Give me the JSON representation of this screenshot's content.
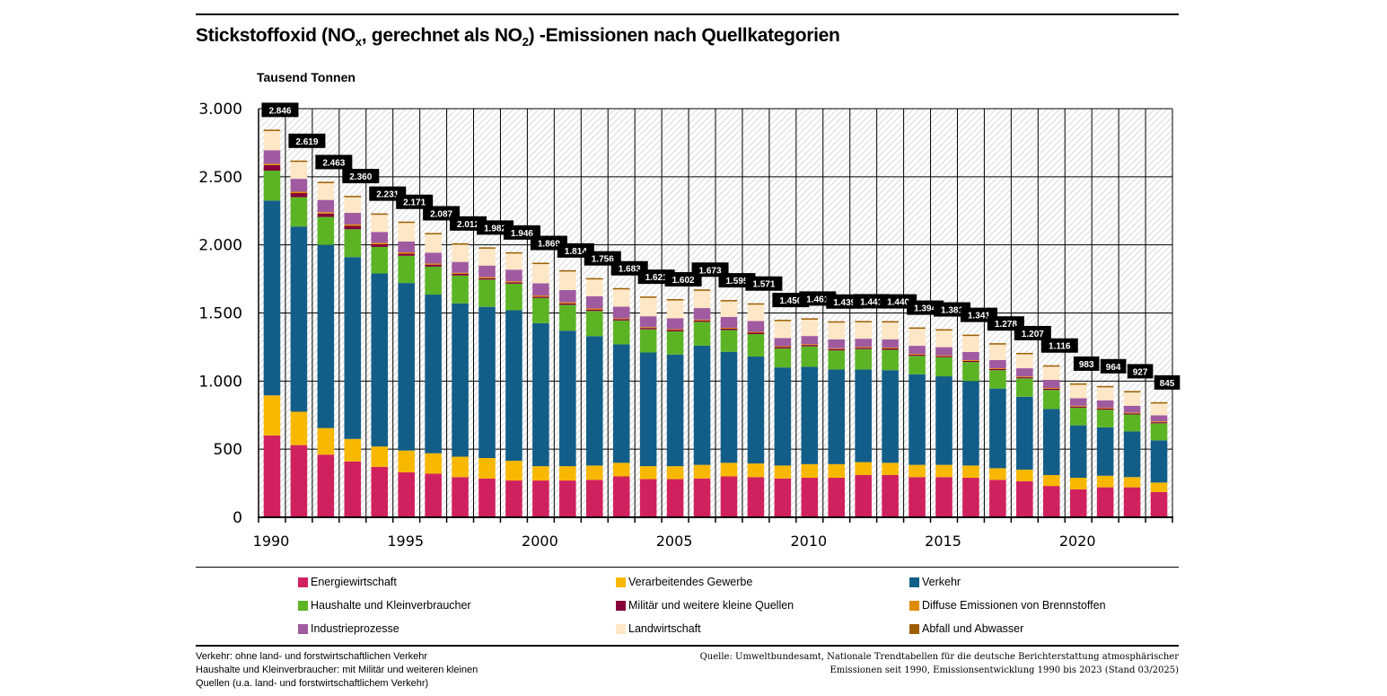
{
  "title_parts": {
    "a": "Stickstoffoxid (NO",
    "sub1": "x",
    "b": ", gerechnet als NO",
    "sub2": "2",
    "c": ") -Emissionen nach Quellkategorien"
  },
  "chart_data": {
    "type": "bar",
    "stacked": true,
    "title": "Stickstoffoxid (NOx, gerechnet als NO2) -Emissionen nach Quellkategorien",
    "ylabel": "Tausend Tonnen",
    "xlabel": "",
    "ylim": [
      0,
      3000
    ],
    "yticks": [
      0,
      500,
      1000,
      1500,
      2000,
      2500,
      3000
    ],
    "ytick_labels": [
      "0",
      "500",
      "1.000",
      "1.500",
      "2.000",
      "2.500",
      "3.000"
    ],
    "grid": true,
    "categories": [
      1990,
      1991,
      1992,
      1993,
      1994,
      1995,
      1996,
      1997,
      1998,
      1999,
      2000,
      2001,
      2002,
      2003,
      2004,
      2005,
      2006,
      2007,
      2008,
      2009,
      2010,
      2011,
      2012,
      2013,
      2014,
      2015,
      2016,
      2017,
      2018,
      2019,
      2020,
      2021,
      2022,
      2023
    ],
    "xtick_labels": {
      "1990": "1990",
      "1995": "1995",
      "2000": "2000",
      "2005": "2005",
      "2010": "2010",
      "2015": "2015",
      "2020": "2020"
    },
    "totals": [
      2846,
      2619,
      2463,
      2360,
      2231,
      2171,
      2087,
      2012,
      1982,
      1946,
      1869,
      1814,
      1756,
      1683,
      1621,
      1602,
      1673,
      1595,
      1571,
      1450,
      1461,
      1439,
      1441,
      1440,
      1394,
      1381,
      1341,
      1278,
      1207,
      1116,
      983,
      964,
      927,
      845
    ],
    "total_labels": [
      "2.846",
      "2.619",
      "2.463",
      "2.360",
      "2.231",
      "2.171",
      "2.087",
      "2.012",
      "1.982",
      "1.946",
      "1.869",
      "1.814",
      "1.756",
      "1.683",
      "1.621",
      "1.602",
      "1.673",
      "1.595",
      "1.571",
      "1.450",
      "1.461",
      "1.439",
      "1.441",
      "1.440",
      "1.394",
      "1.381",
      "1.341",
      "1.278",
      "1.207",
      "1.116",
      "983",
      "964",
      "927",
      "845"
    ],
    "series": [
      {
        "name": "Energiewirtschaft",
        "color": "#d0215f",
        "values": [
          600,
          530,
          460,
          410,
          370,
          330,
          320,
          295,
          285,
          270,
          270,
          270,
          275,
          300,
          280,
          280,
          285,
          300,
          295,
          285,
          290,
          290,
          310,
          310,
          295,
          295,
          290,
          275,
          265,
          230,
          205,
          220,
          220,
          185
        ]
      },
      {
        "name": "Verarbeitendes Gewerbe",
        "color": "#f9b800",
        "values": [
          295,
          245,
          195,
          165,
          150,
          160,
          150,
          150,
          150,
          145,
          105,
          105,
          105,
          100,
          95,
          95,
          100,
          100,
          100,
          95,
          100,
          100,
          95,
          90,
          90,
          90,
          90,
          85,
          85,
          80,
          85,
          85,
          75,
          70
        ]
      },
      {
        "name": "Verkehr",
        "color": "#125e88",
        "values": [
          1430,
          1360,
          1345,
          1335,
          1270,
          1230,
          1165,
          1125,
          1110,
          1105,
          1050,
          995,
          950,
          870,
          835,
          820,
          875,
          815,
          785,
          720,
          715,
          695,
          680,
          680,
          665,
          650,
          620,
          585,
          535,
          485,
          385,
          355,
          335,
          310
        ]
      },
      {
        "name": "Haushalte und Kleinverbraucher",
        "color": "#5cb425",
        "values": [
          220,
          215,
          205,
          205,
          195,
          200,
          205,
          205,
          200,
          195,
          185,
          190,
          185,
          175,
          170,
          170,
          175,
          160,
          165,
          140,
          150,
          140,
          150,
          150,
          135,
          140,
          140,
          135,
          135,
          140,
          130,
          130,
          125,
          125
        ]
      },
      {
        "name": "Militär und weitere kleine Quellen",
        "color": "#86003a",
        "values": [
          40,
          30,
          25,
          25,
          20,
          15,
          15,
          12,
          10,
          10,
          10,
          10,
          10,
          10,
          10,
          10,
          10,
          10,
          10,
          10,
          10,
          10,
          10,
          10,
          8,
          8,
          8,
          8,
          8,
          8,
          8,
          8,
          8,
          8
        ]
      },
      {
        "name": "Diffuse Emissionen von Brennstoffen",
        "color": "#e08c00",
        "values": [
          10,
          10,
          10,
          10,
          10,
          10,
          8,
          8,
          8,
          8,
          8,
          8,
          8,
          6,
          6,
          6,
          6,
          6,
          6,
          6,
          6,
          6,
          6,
          6,
          6,
          6,
          6,
          6,
          6,
          6,
          6,
          6,
          6,
          6
        ]
      },
      {
        "name": "Industrieprozesse",
        "color": "#a05ba0",
        "values": [
          100,
          95,
          90,
          85,
          80,
          80,
          80,
          80,
          85,
          85,
          90,
          90,
          90,
          85,
          80,
          80,
          85,
          80,
          80,
          60,
          60,
          65,
          60,
          60,
          60,
          60,
          60,
          60,
          60,
          60,
          55,
          55,
          50,
          45
        ]
      },
      {
        "name": "Landwirtschaft",
        "color": "#fee7c6",
        "values": [
          141,
          124,
          123,
          115,
          126,
          136,
          134,
          127,
          124,
          118,
          141,
          136,
          123,
          127,
          135,
          131,
          127,
          114,
          120,
          124,
          120,
          123,
          120,
          124,
          125,
          122,
          117,
          114,
          103,
          97,
          99,
          95,
          98,
          86
        ]
      },
      {
        "name": "Abfall und Abwasser",
        "color": "#9d5e00",
        "values": [
          10,
          10,
          10,
          10,
          10,
          10,
          10,
          10,
          10,
          10,
          10,
          10,
          10,
          10,
          10,
          10,
          10,
          10,
          10,
          10,
          10,
          10,
          10,
          10,
          10,
          10,
          10,
          10,
          10,
          10,
          10,
          10,
          10,
          10
        ]
      }
    ],
    "legend_position": "bottom"
  },
  "legend": [
    {
      "label": "Energiewirtschaft",
      "color": "#d0215f"
    },
    {
      "label": "Verarbeitendes Gewerbe",
      "color": "#f9b800"
    },
    {
      "label": "Verkehr",
      "color": "#125e88"
    },
    {
      "label": "Haushalte und Kleinverbraucher",
      "color": "#5cb425"
    },
    {
      "label": "Militär und weitere kleine Quellen",
      "color": "#86003a"
    },
    {
      "label": "Diffuse Emissionen von Brennstoffen",
      "color": "#e08c00"
    },
    {
      "label": "Industrieprozesse",
      "color": "#a05ba0"
    },
    {
      "label": "Landwirtschaft",
      "color": "#fee7c6"
    },
    {
      "label": "Abfall und Abwasser",
      "color": "#9d5e00"
    }
  ],
  "footnotes": {
    "left": [
      "Verkehr: ohne land- und forstwirtschaftlichen Verkehr",
      "Haushalte und Kleinverbraucher: mit Militär und weiteren kleinen",
      "Quellen (u.a. land- und forstwirtschaftlichem Verkehr)"
    ],
    "right": [
      "Quelle: Umweltbundesamt, Nationale Trendtabellen für die deutsche Berichterstattung atmosphärischer",
      "Emissionen seit 1990, Emissionsentwicklung 1990 bis 2023 (Stand 03/2025)"
    ]
  }
}
